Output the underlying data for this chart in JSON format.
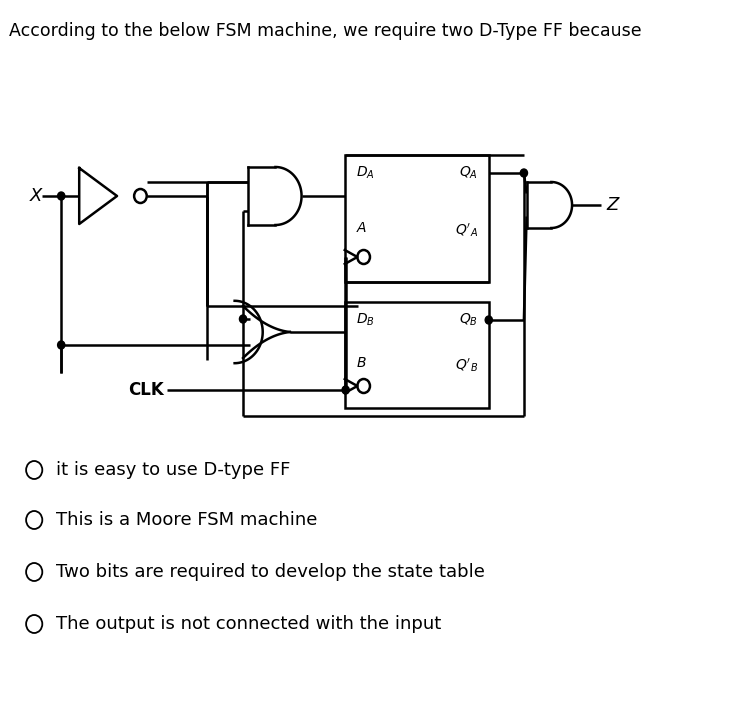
{
  "title": "According to the below FSM machine, we require two D-Type FF because",
  "options": [
    "it is easy to use D-type FF",
    "This is a Moore FSM machine",
    "Two bits are required to develop the state table",
    "The output is not connected with the input"
  ],
  "bg_color": "#ffffff",
  "text_color": "#000000",
  "title_fontsize": 12.5,
  "option_fontsize": 13,
  "lw": 1.8
}
